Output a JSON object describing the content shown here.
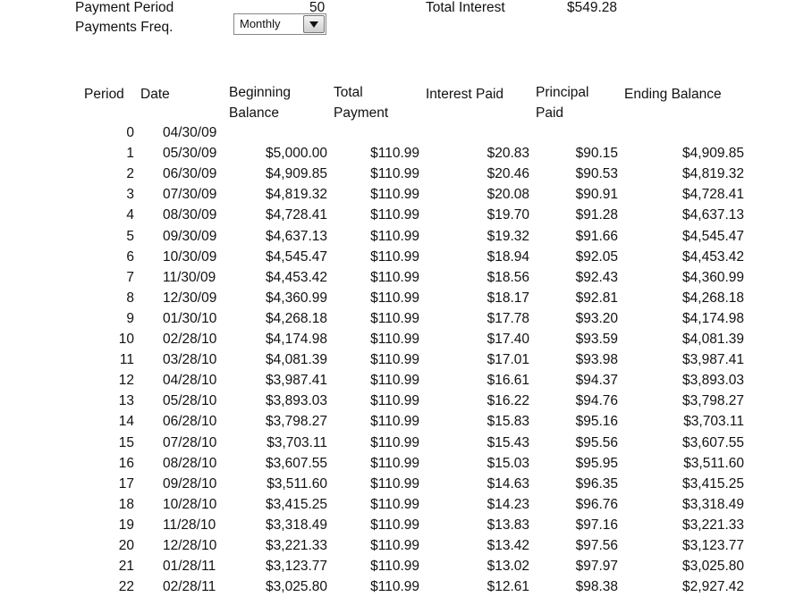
{
  "summary": {
    "payment_period_label": "Payment Period",
    "payment_period_value": "50",
    "total_interest_label": "Total Interest",
    "total_interest_value": "$549.28",
    "payments_freq_label": "Payments Freq.",
    "payments_freq_value": "Monthly"
  },
  "table": {
    "headers": {
      "period": "Period",
      "date": "Date",
      "beginning_1": "Beginning",
      "beginning_2": "Balance",
      "total_1": "Total",
      "total_2": "Payment",
      "interest": "Interest Paid",
      "principal_1": "Principal",
      "principal_2": "Paid",
      "ending": "Ending Balance"
    },
    "rows": [
      [
        "0",
        "04/30/09",
        "",
        "",
        "",
        "",
        ""
      ],
      [
        "1",
        "05/30/09",
        "$5,000.00",
        "$110.99",
        "$20.83",
        "$90.15",
        "$4,909.85"
      ],
      [
        "2",
        "06/30/09",
        "$4,909.85",
        "$110.99",
        "$20.46",
        "$90.53",
        "$4,819.32"
      ],
      [
        "3",
        "07/30/09",
        "$4,819.32",
        "$110.99",
        "$20.08",
        "$90.91",
        "$4,728.41"
      ],
      [
        "4",
        "08/30/09",
        "$4,728.41",
        "$110.99",
        "$19.70",
        "$91.28",
        "$4,637.13"
      ],
      [
        "5",
        "09/30/09",
        "$4,637.13",
        "$110.99",
        "$19.32",
        "$91.66",
        "$4,545.47"
      ],
      [
        "6",
        "10/30/09",
        "$4,545.47",
        "$110.99",
        "$18.94",
        "$92.05",
        "$4,453.42"
      ],
      [
        "7",
        "11/30/09",
        "$4,453.42",
        "$110.99",
        "$18.56",
        "$92.43",
        "$4,360.99"
      ],
      [
        "8",
        "12/30/09",
        "$4,360.99",
        "$110.99",
        "$18.17",
        "$92.81",
        "$4,268.18"
      ],
      [
        "9",
        "01/30/10",
        "$4,268.18",
        "$110.99",
        "$17.78",
        "$93.20",
        "$4,174.98"
      ],
      [
        "10",
        "02/28/10",
        "$4,174.98",
        "$110.99",
        "$17.40",
        "$93.59",
        "$4,081.39"
      ],
      [
        "11",
        "03/28/10",
        "$4,081.39",
        "$110.99",
        "$17.01",
        "$93.98",
        "$3,987.41"
      ],
      [
        "12",
        "04/28/10",
        "$3,987.41",
        "$110.99",
        "$16.61",
        "$94.37",
        "$3,893.03"
      ],
      [
        "13",
        "05/28/10",
        "$3,893.03",
        "$110.99",
        "$16.22",
        "$94.76",
        "$3,798.27"
      ],
      [
        "14",
        "06/28/10",
        "$3,798.27",
        "$110.99",
        "$15.83",
        "$95.16",
        "$3,703.11"
      ],
      [
        "15",
        "07/28/10",
        "$3,703.11",
        "$110.99",
        "$15.43",
        "$95.56",
        "$3,607.55"
      ],
      [
        "16",
        "08/28/10",
        "$3,607.55",
        "$110.99",
        "$15.03",
        "$95.95",
        "$3,511.60"
      ],
      [
        "17",
        "09/28/10",
        "$3,511.60",
        "$110.99",
        "$14.63",
        "$96.35",
        "$3,415.25"
      ],
      [
        "18",
        "10/28/10",
        "$3,415.25",
        "$110.99",
        "$14.23",
        "$96.76",
        "$3,318.49"
      ],
      [
        "19",
        "11/28/10",
        "$3,318.49",
        "$110.99",
        "$13.83",
        "$97.16",
        "$3,221.33"
      ],
      [
        "20",
        "12/28/10",
        "$3,221.33",
        "$110.99",
        "$13.42",
        "$97.56",
        "$3,123.77"
      ],
      [
        "21",
        "01/28/11",
        "$3,123.77",
        "$110.99",
        "$13.02",
        "$97.97",
        "$3,025.80"
      ],
      [
        "22",
        "02/28/11",
        "$3,025.80",
        "$110.99",
        "$12.61",
        "$98.38",
        "$2,927.42"
      ]
    ]
  }
}
